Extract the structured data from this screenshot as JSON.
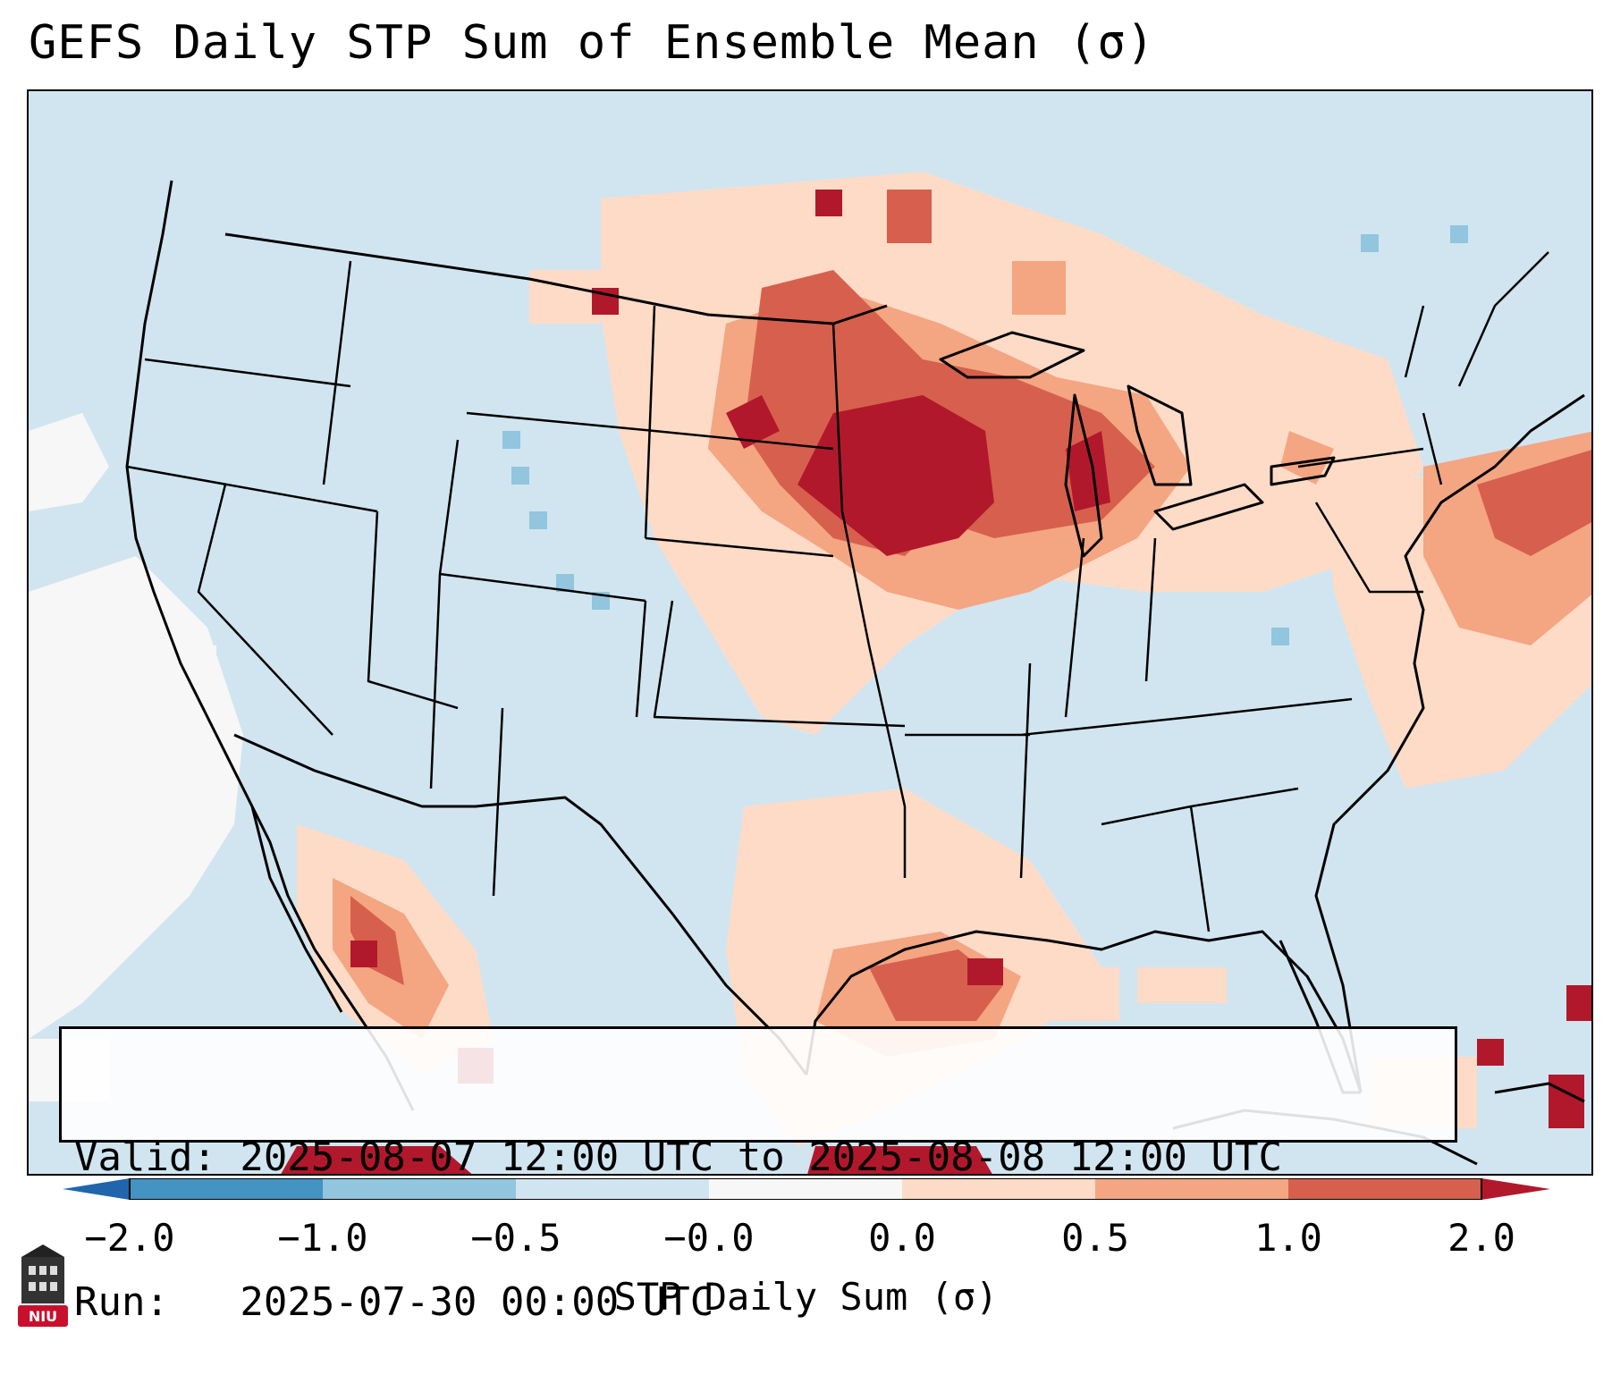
{
  "title": "GEFS Daily STP Sum of Ensemble Mean (σ)",
  "info": {
    "valid_line": "Valid: 2025-08-07 12:00 UTC to 2025-08-08 12:00 UTC",
    "run_line": "Run:   2025-07-30 00:00 UTC"
  },
  "colorbar": {
    "label": "STP Daily Sum (σ)",
    "ticks": [
      "−2.0",
      "−1.0",
      "−0.5",
      "−0.0",
      "0.0",
      "0.5",
      "1.0",
      "2.0"
    ],
    "colors": [
      "#4393c3",
      "#92c5de",
      "#d1e5f0",
      "#f7f7f7",
      "#fddbc7",
      "#f4a582",
      "#d6604d"
    ],
    "under_color": "#2166ac",
    "over_color": "#b2182b"
  },
  "map": {
    "background_color": "#d1e5f0",
    "region": "Contiguous United States, southern Canada, northern Mexico and the Caribbean",
    "highlight_regions": [
      {
        "name": "Upper Midwest / Iowa / Minnesota / Wisconsin",
        "level": "> 2.0",
        "color": "#b2182b"
      },
      {
        "name": "Michigan / Great Lakes",
        "level": "1.0 – 2.0",
        "color": "#d6604d"
      },
      {
        "name": "Northern Plains / Dakotas",
        "level": "0.5 – 2.0",
        "color": "#d6604d"
      },
      {
        "name": "Gulf Coast / Louisiana / Texas coast",
        "level": "0.5 – 1.0",
        "color": "#f4a582"
      },
      {
        "name": "Northwestern Mexico / Gulf of California",
        "level": "0.5 – 2.0",
        "color": "#d6604d"
      },
      {
        "name": "Western Atlantic off New England",
        "level": "0.5 – 1.0",
        "color": "#f4a582"
      },
      {
        "name": "Pacific off Baja California",
        "level": "−0.0 – 0.0",
        "color": "#f7f7f7"
      }
    ]
  },
  "logo": {
    "text": "NIU",
    "color": "#c8102e"
  }
}
